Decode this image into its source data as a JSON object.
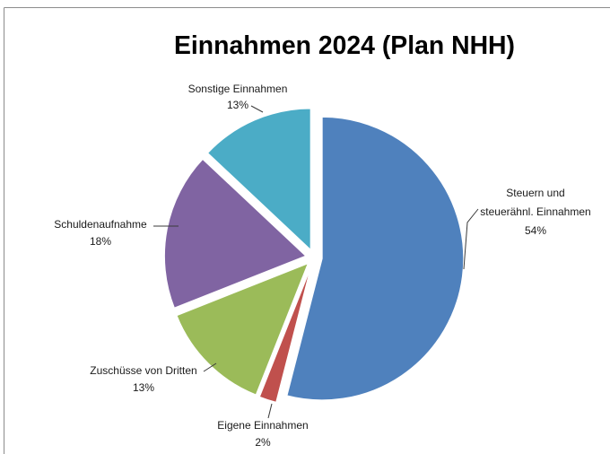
{
  "chart_data": {
    "type": "pie",
    "title": "Einnahmen 2024 (Plan NHH)",
    "exploded": true,
    "legend": "none",
    "slices": [
      {
        "label_lines": [
          "Steuern und",
          "steuerähnl. Einnahmen"
        ],
        "value": 54,
        "data_label": "54%",
        "color": "#4F81BD"
      },
      {
        "label_lines": [
          "Eigene Einnahmen"
        ],
        "value": 2,
        "data_label": "2%",
        "color": "#C0504D"
      },
      {
        "label_lines": [
          "Zuschüsse von Dritten"
        ],
        "value": 13,
        "data_label": "13%",
        "color": "#9BBB59"
      },
      {
        "label_lines": [
          "Schuldenaufnahme"
        ],
        "value": 18,
        "data_label": "18%",
        "color": "#8064A2"
      },
      {
        "label_lines": [
          "Sonstige Einnahmen"
        ],
        "value": 13,
        "data_label": "13%",
        "color": "#4BACC6"
      }
    ]
  }
}
